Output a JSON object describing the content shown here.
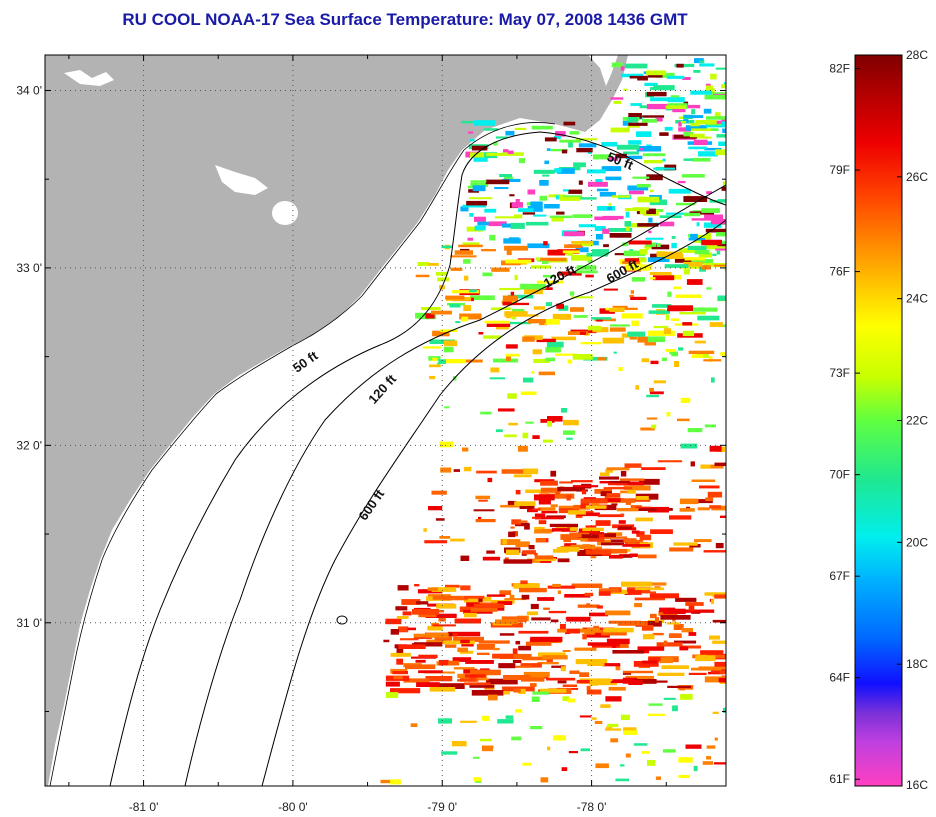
{
  "title": "RU COOL  NOAA-17  Sea Surface Temperature:  May 07, 2008 1436 GMT",
  "map": {
    "lon_range": [
      -81.66,
      -77.1
    ],
    "lat_range": [
      30.08,
      34.2
    ],
    "lon_ticks": [
      {
        "value": -81,
        "label": "-81 0'"
      },
      {
        "value": -80,
        "label": "-80 0'"
      },
      {
        "value": -79,
        "label": "-79 0'"
      },
      {
        "value": -78,
        "label": "-78 0'"
      }
    ],
    "lat_ticks": [
      {
        "value": 34,
        "label": "34 0'"
      },
      {
        "value": 33,
        "label": "33 0'"
      },
      {
        "value": 32,
        "label": "32 0'"
      },
      {
        "value": 31,
        "label": "31 0'"
      }
    ],
    "isobath_labels": [
      {
        "label": "50 ft",
        "lon": -77.82,
        "lat": 33.58,
        "angle": 22
      },
      {
        "label": "120 ft",
        "lon": -78.2,
        "lat": 32.93,
        "angle": -28
      },
      {
        "label": "600 ft",
        "lon": -77.78,
        "lat": 32.96,
        "angle": -30
      },
      {
        "label": "50 ft",
        "lon": -79.9,
        "lat": 32.45,
        "angle": -35
      },
      {
        "label": "120 ft",
        "lon": -79.38,
        "lat": 32.3,
        "angle": -48
      },
      {
        "label": "600 ft",
        "lon": -79.45,
        "lat": 31.65,
        "angle": -55
      }
    ],
    "land_color": "#b3b3b3"
  },
  "colorbar": {
    "celsius_labels": [
      "28C",
      "26C",
      "24C",
      "22C",
      "20C",
      "18C",
      "16C"
    ],
    "fahrenheit_labels": [
      "82F",
      "79F",
      "76F",
      "73F",
      "70F",
      "67F",
      "64F",
      "61F"
    ],
    "range_c": [
      16,
      28
    ],
    "colors": [
      "#ff3fc0",
      "#c040e0",
      "#7a30d8",
      "#1010ff",
      "#0066ff",
      "#00b0ff",
      "#00eeee",
      "#20e890",
      "#60ff40",
      "#c8ff00",
      "#ffff00",
      "#ffc000",
      "#ff8000",
      "#ff4000",
      "#ee0000",
      "#b00000",
      "#800000"
    ]
  }
}
